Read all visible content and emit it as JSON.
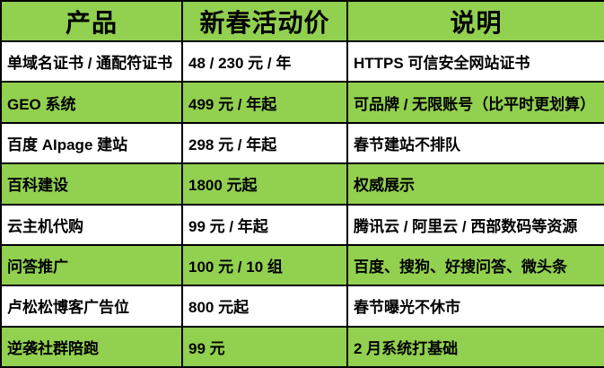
{
  "table": {
    "headers": [
      "产品",
      "新春活动价",
      "说明"
    ],
    "rows": [
      {
        "product": "单域名证书 / 通配符证书",
        "price": "48 / 230 元 / 年",
        "note": "HTTPS 可信安全网站证书"
      },
      {
        "product": "GEO 系统",
        "price": "499 元 / 年起",
        "note": "可品牌 / 无限账号（比平时更划算）"
      },
      {
        "product": "百度 AIpage 建站",
        "price": "298 元 / 年起",
        "note": "春节建站不排队"
      },
      {
        "product": "百科建设",
        "price": "1800 元起",
        "note": "权威展示"
      },
      {
        "product": "云主机代购",
        "price": "99 元 / 年起",
        "note": "腾讯云 / 阿里云 / 西部数码等资源"
      },
      {
        "product": "问答推广",
        "price": "100 元 / 10 组",
        "note": "百度、搜狗、好搜问答、微头条"
      },
      {
        "product": "卢松松博客广告位",
        "price": "800 元起",
        "note": "春节曝光不休市"
      },
      {
        "product": "逆袭社群陪跑",
        "price": "99 元",
        "note": "2 月系统打基础"
      }
    ],
    "colors": {
      "header_bg": "#92d050",
      "alt_row_bg": "#92d050",
      "row_bg": "#ffffff",
      "border": "#000000",
      "text": "#000000"
    }
  }
}
